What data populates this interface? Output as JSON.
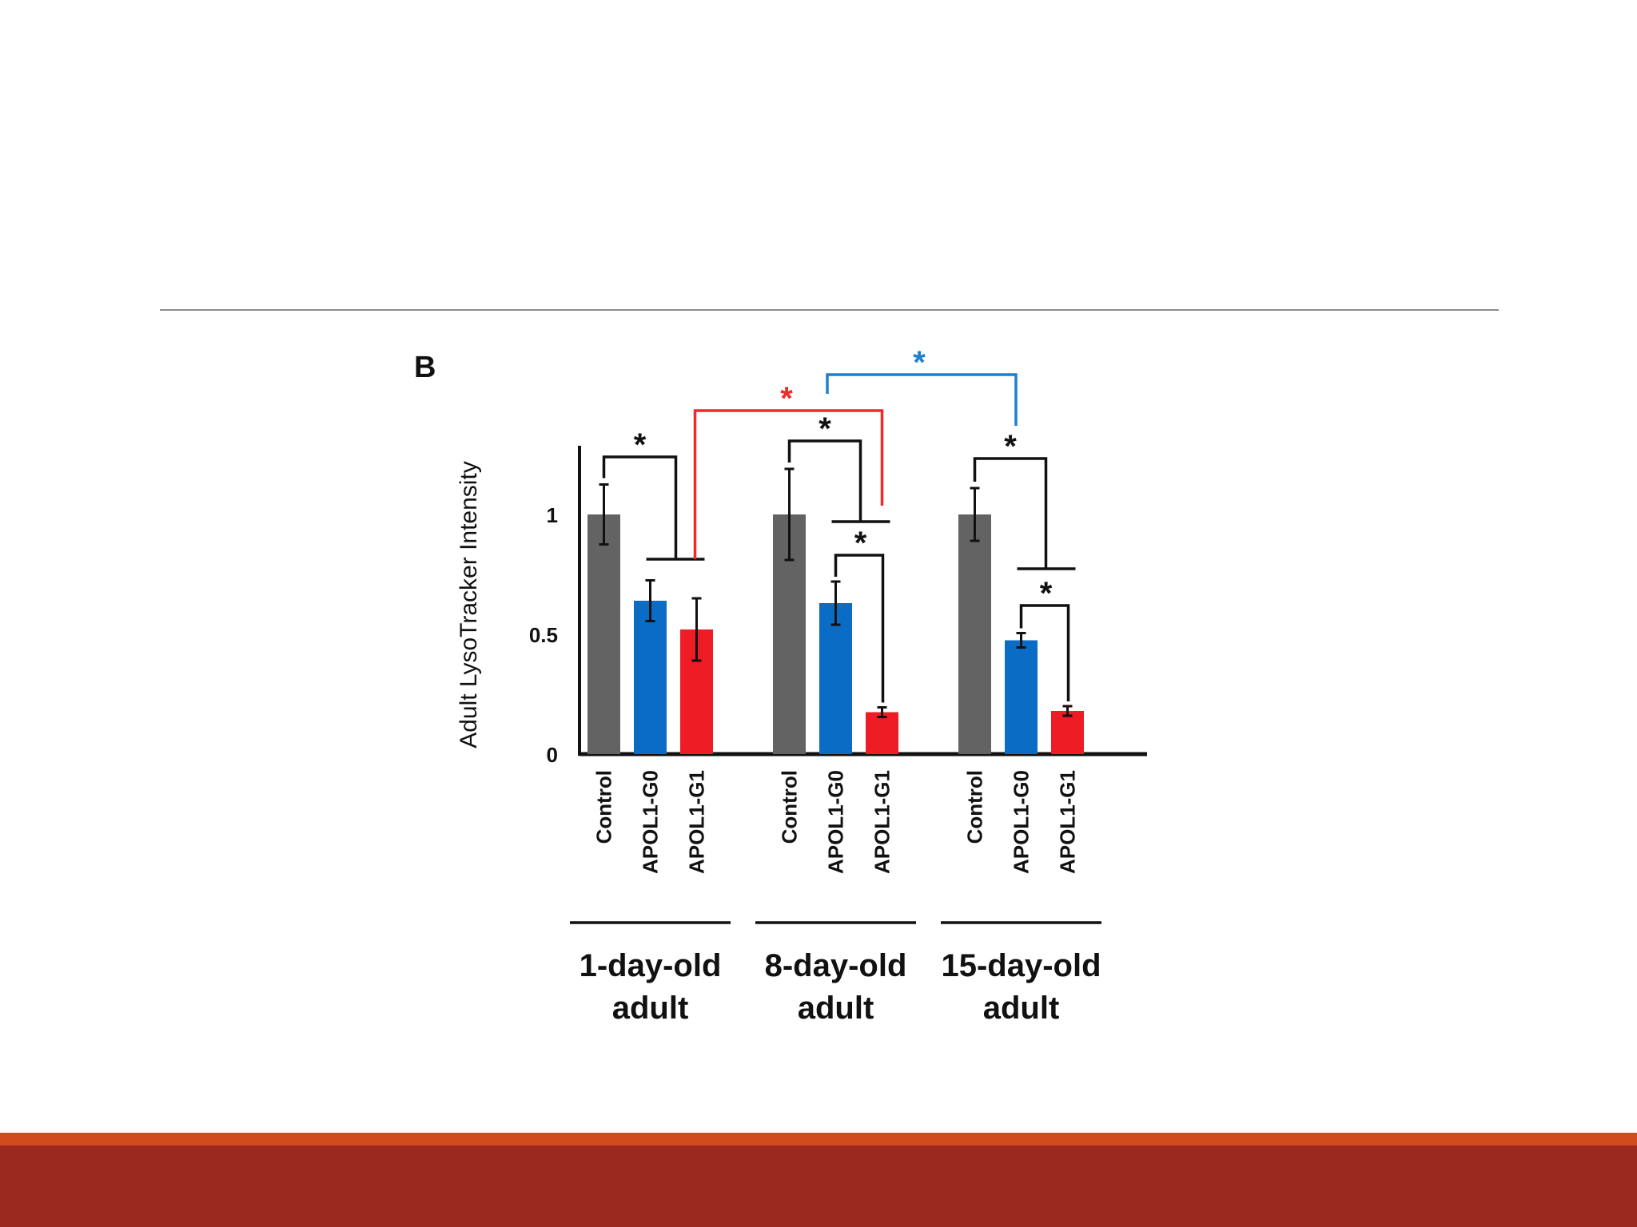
{
  "chart_data": {
    "type": "bar",
    "panel_label": "B",
    "ylabel": "Adult LysoTracker Intensity",
    "ylim": [
      0,
      1.3
    ],
    "yticks": [
      {
        "value": 0,
        "label": "0"
      },
      {
        "value": 0.5,
        "label": "0.5"
      },
      {
        "value": 1,
        "label": "1"
      }
    ],
    "grid": false,
    "legend": "none",
    "significance_mark": "*",
    "colors": {
      "Control": "#636363",
      "APOL1-G0": "#0a6cc4",
      "APOL1-G1": "#ee1c24",
      "red_bracket": "#ee2a2a",
      "blue_bracket": "#1f7fcf",
      "axis": "#111111"
    },
    "groups": [
      {
        "label_line1": "1-day-old",
        "label_line2": "adult",
        "bars": [
          {
            "category": "Control",
            "value": 1.0,
            "error": 0.125
          },
          {
            "category": "APOL1-G0",
            "value": 0.64,
            "error": 0.085
          },
          {
            "category": "APOL1-G1",
            "value": 0.52,
            "error": 0.13
          }
        ]
      },
      {
        "label_line1": "8-day-old",
        "label_line2": "adult",
        "bars": [
          {
            "category": "Control",
            "value": 1.0,
            "error": 0.19
          },
          {
            "category": "APOL1-G0",
            "value": 0.63,
            "error": 0.09
          },
          {
            "category": "APOL1-G1",
            "value": 0.175,
            "error": 0.02
          }
        ]
      },
      {
        "label_line1": "15-day-old",
        "label_line2": "adult",
        "bars": [
          {
            "category": "Control",
            "value": 1.0,
            "error": 0.11
          },
          {
            "category": "APOL1-G0",
            "value": 0.475,
            "error": 0.03
          },
          {
            "category": "APOL1-G1",
            "value": 0.18,
            "error": 0.02
          }
        ]
      }
    ]
  }
}
